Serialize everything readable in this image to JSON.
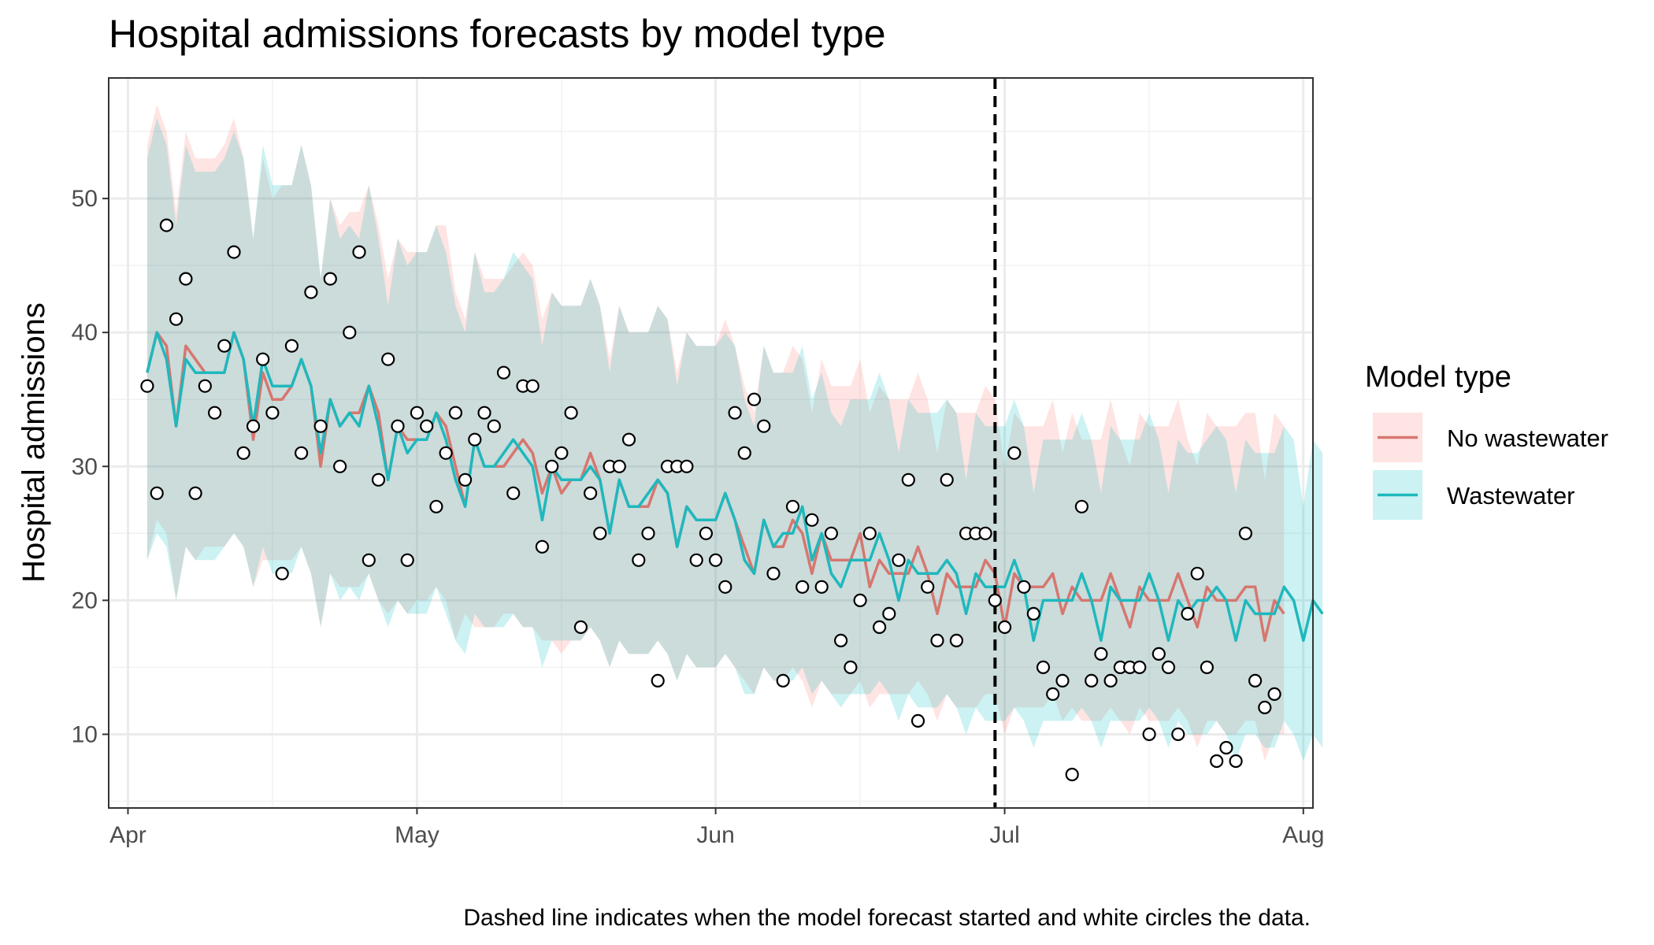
{
  "chart_data": {
    "type": "line",
    "title": "Hospital admissions forecasts by model type",
    "xlabel": "",
    "ylabel": "Hospital admissions",
    "caption": "Dashed line indicates when the model forecast started and white circles the data.",
    "x_tick_labels": [
      "Apr",
      "May",
      "Jun",
      "Jul",
      "Aug"
    ],
    "y_ticks": [
      10,
      20,
      30,
      40,
      50
    ],
    "xlim": [
      "2023-03-30",
      "2023-08-02"
    ],
    "ylim": [
      4.5,
      59
    ],
    "grid": true,
    "legend_position": "right",
    "legend_title": "Model type",
    "forecast_start": "2023-06-30",
    "x_start": "2023-04-03",
    "series": [
      {
        "name": "No wastewater",
        "color": "#F8766D",
        "median": [
          37,
          40,
          39,
          33,
          39,
          38,
          37,
          37,
          37,
          40,
          38,
          32,
          37,
          35,
          35,
          36,
          38,
          36,
          30,
          35,
          33,
          34,
          34,
          36,
          34,
          29,
          33,
          32,
          32,
          32,
          34,
          33,
          30,
          27,
          32,
          30,
          30,
          30,
          31,
          32,
          31,
          28,
          30,
          28,
          29,
          29,
          31,
          29,
          25,
          29,
          27,
          27,
          27,
          29,
          28,
          24,
          27,
          26,
          26,
          26,
          28,
          26,
          24,
          22,
          26,
          24,
          24,
          26,
          25,
          22,
          25,
          23,
          23,
          23,
          25,
          21,
          23,
          22,
          22,
          22,
          24,
          22,
          19,
          22,
          21,
          21,
          21,
          23,
          22,
          18,
          22,
          21,
          21,
          21,
          22,
          19,
          21,
          20,
          20,
          20,
          22,
          20,
          18,
          21,
          20,
          20,
          20,
          22,
          20,
          18,
          21,
          20,
          20,
          20,
          21,
          21,
          17,
          20,
          19
        ],
        "lower": [
          23,
          26,
          25,
          20,
          24,
          23,
          24,
          24,
          24,
          25,
          24,
          21,
          23,
          23,
          23,
          23,
          24,
          22,
          18,
          22,
          21,
          21,
          21,
          22,
          20,
          19,
          20,
          19,
          20,
          20,
          21,
          20,
          17,
          19,
          18,
          18,
          18,
          19,
          19,
          18,
          18,
          17,
          17,
          16,
          17,
          17,
          18,
          17,
          15,
          17,
          16,
          16,
          16,
          17,
          16,
          14,
          16,
          15,
          15,
          15,
          16,
          15,
          14,
          13,
          15,
          14,
          14,
          15,
          14,
          12,
          14,
          13,
          13,
          13,
          14,
          12,
          13,
          13,
          13,
          13,
          14,
          13,
          11,
          13,
          12,
          12,
          12,
          13,
          13,
          10,
          12,
          12,
          12,
          12,
          13,
          11,
          12,
          11,
          11,
          11,
          12,
          11,
          10,
          12,
          11,
          11,
          11,
          12,
          11,
          9,
          11,
          11,
          10,
          10,
          11,
          11,
          8,
          10,
          10
        ],
        "upper": [
          54,
          57,
          55,
          49,
          55,
          53,
          53,
          53,
          54,
          56,
          53,
          47,
          53,
          50,
          51,
          51,
          54,
          51,
          44,
          50,
          48,
          49,
          49,
          51,
          48,
          44,
          47,
          46,
          46,
          46,
          48,
          48,
          43,
          41,
          46,
          44,
          44,
          44,
          45,
          46,
          45,
          41,
          43,
          42,
          42,
          42,
          44,
          42,
          38,
          42,
          40,
          40,
          40,
          42,
          41,
          37,
          40,
          39,
          39,
          39,
          41,
          39,
          36,
          34,
          39,
          37,
          37,
          39,
          38,
          34,
          38,
          36,
          36,
          36,
          38,
          34,
          36,
          35,
          35,
          35,
          37,
          35,
          31,
          35,
          34,
          34,
          34,
          36,
          35,
          30,
          34,
          33,
          33,
          33,
          35,
          31,
          34,
          32,
          32,
          32,
          35,
          32,
          30,
          34,
          33,
          33,
          33,
          35,
          32,
          30,
          34,
          33,
          33,
          33,
          34,
          34,
          29,
          34,
          33
        ]
      },
      {
        "name": "Wastewater",
        "color": "#00BFC4",
        "median": [
          37,
          40,
          38,
          33,
          38,
          37,
          37,
          37,
          37,
          40,
          38,
          33,
          38,
          36,
          36,
          36,
          38,
          36,
          31,
          35,
          33,
          34,
          33,
          36,
          33,
          29,
          33,
          31,
          32,
          32,
          34,
          32,
          29,
          27,
          32,
          30,
          30,
          31,
          32,
          31,
          30,
          26,
          30,
          29,
          29,
          29,
          30,
          29,
          25,
          29,
          27,
          27,
          28,
          29,
          28,
          24,
          27,
          26,
          26,
          26,
          28,
          26,
          23,
          22,
          26,
          24,
          25,
          25,
          27,
          23,
          25,
          22,
          21,
          23,
          23,
          23,
          25,
          23,
          20,
          23,
          22,
          22,
          22,
          23,
          22,
          19,
          22,
          21,
          21,
          21,
          23,
          21,
          17,
          20,
          20,
          20,
          20,
          22,
          20,
          17,
          21,
          20,
          20,
          20,
          22,
          20,
          17,
          20,
          19,
          20,
          20,
          21,
          20,
          17,
          20,
          19,
          19,
          19,
          21,
          20,
          17,
          20,
          19
        ],
        "lower": [
          23,
          25,
          24,
          20,
          24,
          23,
          23,
          23,
          24,
          25,
          24,
          21,
          24,
          22,
          22,
          22,
          24,
          22,
          18,
          22,
          20,
          21,
          20,
          22,
          20,
          18,
          20,
          19,
          19,
          19,
          21,
          19,
          17,
          16,
          19,
          18,
          18,
          18,
          19,
          18,
          18,
          15,
          17,
          17,
          17,
          17,
          18,
          17,
          15,
          17,
          16,
          16,
          16,
          17,
          16,
          14,
          16,
          15,
          15,
          15,
          16,
          15,
          13,
          13,
          15,
          14,
          14,
          14,
          15,
          13,
          14,
          13,
          12,
          13,
          13,
          13,
          14,
          13,
          11,
          13,
          12,
          12,
          12,
          13,
          12,
          10,
          12,
          11,
          11,
          11,
          12,
          11,
          9,
          11,
          11,
          11,
          11,
          12,
          11,
          9,
          11,
          11,
          11,
          11,
          12,
          11,
          9,
          11,
          10,
          10,
          10,
          11,
          10,
          8,
          10,
          10,
          9,
          9,
          11,
          10,
          8,
          10,
          9
        ],
        "upper": [
          53,
          56,
          54,
          48,
          54,
          52,
          52,
          52,
          53,
          55,
          53,
          47,
          54,
          51,
          51,
          51,
          54,
          51,
          44,
          50,
          47,
          48,
          47,
          51,
          47,
          42,
          47,
          45,
          46,
          46,
          48,
          46,
          42,
          40,
          46,
          43,
          43,
          44,
          46,
          45,
          44,
          39,
          43,
          42,
          42,
          42,
          44,
          42,
          37,
          42,
          40,
          40,
          40,
          42,
          41,
          36,
          40,
          39,
          39,
          39,
          40,
          39,
          35,
          33,
          39,
          37,
          37,
          37,
          39,
          35,
          37,
          34,
          33,
          35,
          35,
          35,
          37,
          35,
          31,
          35,
          34,
          34,
          34,
          35,
          34,
          29,
          34,
          33,
          33,
          33,
          35,
          33,
          28,
          32,
          32,
          32,
          32,
          34,
          32,
          28,
          33,
          32,
          32,
          32,
          34,
          32,
          28,
          32,
          31,
          31,
          32,
          33,
          32,
          28,
          32,
          31,
          31,
          31,
          33,
          32,
          27,
          32,
          31
        ]
      }
    ],
    "observed": {
      "start": "2023-04-03",
      "values": [
        36,
        28,
        48,
        41,
        44,
        28,
        36,
        34,
        39,
        46,
        31,
        33,
        38,
        34,
        22,
        39,
        31,
        43,
        33,
        44,
        30,
        40,
        46,
        23,
        29,
        38,
        33,
        23,
        34,
        33,
        27,
        31,
        34,
        29,
        32,
        34,
        33,
        37,
        28,
        36,
        36,
        24,
        30,
        31,
        34,
        18,
        28,
        25,
        30,
        30,
        32,
        23,
        25,
        14,
        30,
        30,
        30,
        23,
        25,
        23,
        21,
        34,
        31,
        35,
        33,
        22,
        14,
        27,
        21,
        26,
        21,
        25,
        17,
        15,
        20,
        25,
        18,
        19,
        23,
        29,
        11,
        21,
        17,
        29,
        17,
        25,
        25,
        25,
        20,
        18,
        31,
        21,
        19,
        15,
        13,
        14,
        7,
        27,
        14,
        16,
        14,
        15,
        15,
        15,
        10,
        16,
        15,
        10,
        19,
        22,
        15,
        8,
        9,
        8,
        25,
        14,
        12,
        13
      ]
    }
  }
}
